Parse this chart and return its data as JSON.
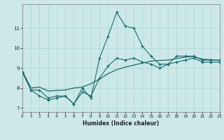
{
  "title": "",
  "xlabel": "Humidex (Indice chaleur)",
  "bg_color": "#cce8e8",
  "grid_color": "#aad4d4",
  "line_color": "#1a6b6b",
  "xlim": [
    0,
    23
  ],
  "ylim": [
    6.8,
    12.2
  ],
  "xticks": [
    0,
    1,
    2,
    3,
    4,
    5,
    6,
    7,
    8,
    9,
    10,
    11,
    12,
    13,
    14,
    15,
    16,
    17,
    18,
    19,
    20,
    21,
    22,
    23
  ],
  "yticks": [
    7,
    8,
    9,
    10,
    11
  ],
  "line1_x": [
    0,
    1,
    2,
    3,
    4,
    5,
    6,
    7,
    8,
    9,
    10,
    11,
    12,
    13,
    14,
    15,
    16,
    17,
    18,
    19,
    20,
    21,
    22,
    23
  ],
  "line1_y": [
    8.8,
    7.9,
    7.6,
    7.4,
    7.5,
    7.6,
    7.2,
    8.0,
    7.5,
    9.5,
    10.6,
    11.8,
    11.1,
    11.0,
    10.1,
    9.6,
    9.2,
    9.2,
    9.6,
    9.6,
    9.6,
    9.4,
    9.4,
    9.4
  ],
  "line2_x": [
    0,
    1,
    2,
    3,
    4,
    5,
    6,
    7,
    8,
    9,
    10,
    11,
    12,
    13,
    14,
    15,
    16,
    17,
    18,
    19,
    20,
    21,
    22,
    23
  ],
  "line2_y": [
    8.85,
    8.0,
    8.05,
    7.85,
    7.88,
    7.9,
    8.0,
    8.05,
    8.22,
    8.45,
    8.72,
    8.92,
    9.05,
    9.15,
    9.25,
    9.35,
    9.38,
    9.4,
    9.48,
    9.55,
    9.57,
    9.45,
    9.42,
    9.4
  ],
  "line3_x": [
    0,
    1,
    2,
    3,
    4,
    5,
    6,
    7,
    8,
    9,
    10,
    11,
    12,
    13,
    14,
    15,
    16,
    17,
    18,
    19,
    20,
    21,
    22,
    23
  ],
  "line3_y": [
    8.8,
    7.9,
    7.9,
    7.5,
    7.6,
    7.6,
    7.2,
    7.8,
    7.6,
    8.5,
    9.1,
    9.5,
    9.4,
    9.5,
    9.3,
    9.2,
    9.0,
    9.2,
    9.3,
    9.4,
    9.5,
    9.3,
    9.3,
    9.3
  ]
}
